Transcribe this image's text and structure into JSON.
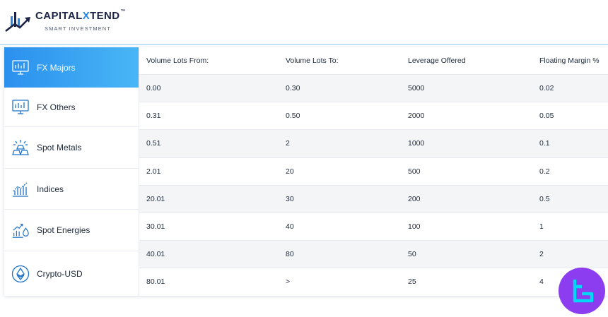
{
  "brand": {
    "name_prefix": "CAPITAL",
    "name_x": "X",
    "name_suffix": "TEND",
    "trademark": "™",
    "tagline": "SMART INVESTMENT"
  },
  "sidebar": {
    "items": [
      {
        "label": "FX Majors",
        "icon": "monitor-chart-icon",
        "active": true
      },
      {
        "label": "FX Others",
        "icon": "monitor-chart-icon",
        "active": false
      },
      {
        "label": "Spot Metals",
        "icon": "gold-bars-icon",
        "active": false
      },
      {
        "label": "Indices",
        "icon": "indices-chart-icon",
        "active": false
      },
      {
        "label": "Spot Energies",
        "icon": "energy-chart-icon",
        "active": false
      },
      {
        "label": "Crypto-USD",
        "icon": "ethereum-icon",
        "active": false
      }
    ]
  },
  "table": {
    "headers": [
      "Volume Lots From:",
      "Volume Lots To:",
      "Leverage Offered",
      "Floating Margin %"
    ],
    "rows": [
      [
        "0.00",
        "0.30",
        "5000",
        "0.02"
      ],
      [
        "0.31",
        "0.50",
        "2000",
        "0.05"
      ],
      [
        "0.51",
        "2",
        "1000",
        "0.1"
      ],
      [
        "2.01",
        "20",
        "500",
        "0.2"
      ],
      [
        "20.01",
        "30",
        "200",
        "0.5"
      ],
      [
        "30.01",
        "40",
        "100",
        "1"
      ],
      [
        "40.01",
        "80",
        "50",
        "2"
      ],
      [
        "80.01",
        ">",
        "25",
        "4"
      ]
    ]
  },
  "colors": {
    "accent": "#2b90ee",
    "brand_dark": "#1b2446",
    "watermark": "#8c3df0"
  }
}
